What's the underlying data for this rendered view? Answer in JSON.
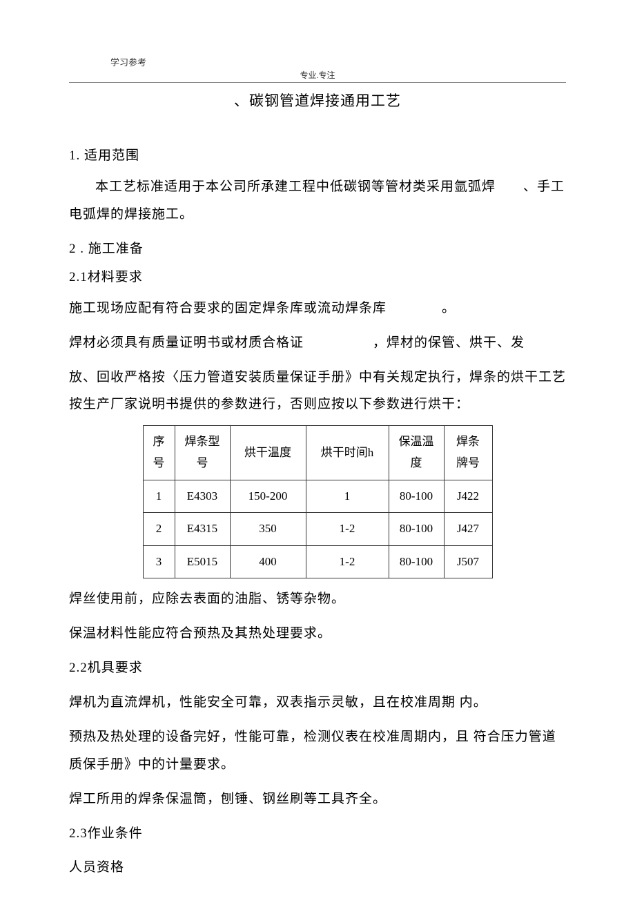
{
  "header_note": "学习参考",
  "divider_label": "专业.专注",
  "title": "、碳钢管道焊接通用工艺",
  "sections": {
    "s1": {
      "heading": "1. 适用范围",
      "p1": "本工艺标准适用于本公司所承建工程中低碳钢等管材类采用氩弧焊　　、手工电弧焊的焊接施工。"
    },
    "s2": {
      "heading": "2 . 施工准备",
      "s21_heading": "2.1材料要求",
      "p1": "施工现场应配有符合要求的固定焊条库或流动焊条库　　　　。",
      "p2": "焊材必须具有质量证明书或材质合格证　　　　　，焊材的保管、烘干、发",
      "p3": "放、回收严格按〈压力管道安装质量保证手册》中有关规定执行，焊条的烘干工艺按生产厂家说明书提供的参数进行，否则应按以下参数进行烘干：",
      "p4": "焊丝使用前，应除去表面的油脂、锈等杂物。",
      "p5": "保温材料性能应符合预热及其热处理要求。",
      "s22_heading": "2.2机具要求",
      "p6": "焊机为直流焊机，性能安全可靠，双表指示灵敏，且在校准周期 内。",
      "p7": "预热及热处理的设备完好，性能可靠，检测仪表在校准周期内，且 符合压力管道质保手册》中的计量要求。",
      "p8": "焊工所用的焊条保温筒，刨锤、钢丝刷等工具齐全。",
      "s23_heading": "2.3作业条件",
      "p9": "人员资格"
    }
  },
  "table": {
    "headers": {
      "seq": "序号",
      "model": "焊条型号",
      "temp": "烘干温度",
      "time": "烘干时间h",
      "keep": "保温温度",
      "brand": "焊条牌号"
    },
    "rows": [
      {
        "seq": "1",
        "model": "E4303",
        "temp": "150-200",
        "time": "1",
        "keep": "80-100",
        "brand": "J422"
      },
      {
        "seq": "2",
        "model": "E4315",
        "temp": "350",
        "time": "1-2",
        "keep": "80-100",
        "brand": "J427"
      },
      {
        "seq": "3",
        "model": "E5015",
        "temp": "400",
        "time": "1-2",
        "keep": "80-100",
        "brand": "J507"
      }
    ]
  }
}
